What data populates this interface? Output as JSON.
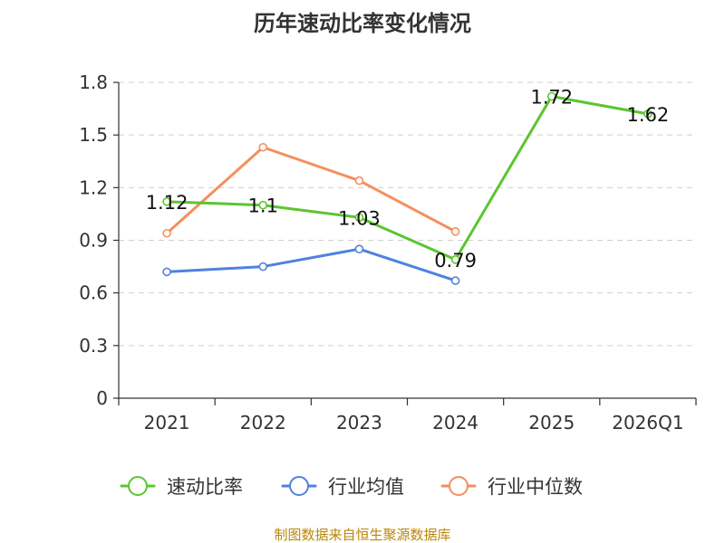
{
  "chart_data": {
    "type": "line",
    "title": "历年速动比率变化情况",
    "categories": [
      "2021",
      "2022",
      "2023",
      "2024",
      "2025",
      "2026Q1"
    ],
    "y_ticks": [
      "0",
      "0.3",
      "0.6",
      "0.9",
      "1.2",
      "1.5",
      "1.8"
    ],
    "ylim": [
      0,
      1.8
    ],
    "grid": true,
    "legend_position": "bottom",
    "series": [
      {
        "name": "速动比率",
        "color": "#5cc531",
        "values": [
          1.12,
          1.1,
          1.03,
          0.79,
          1.72,
          1.62
        ],
        "labels": [
          "1.12",
          "1.1",
          "1.03",
          "0.79",
          "1.72",
          "1.62"
        ]
      },
      {
        "name": "行业均值",
        "color": "#4f82e0",
        "values": [
          0.72,
          0.75,
          0.85,
          0.67,
          null,
          null
        ]
      },
      {
        "name": "行业中位数",
        "color": "#f58f5d",
        "values": [
          0.94,
          1.43,
          1.24,
          0.95,
          null,
          null
        ]
      }
    ]
  },
  "source_text": "制图数据来自恒生聚源数据库"
}
